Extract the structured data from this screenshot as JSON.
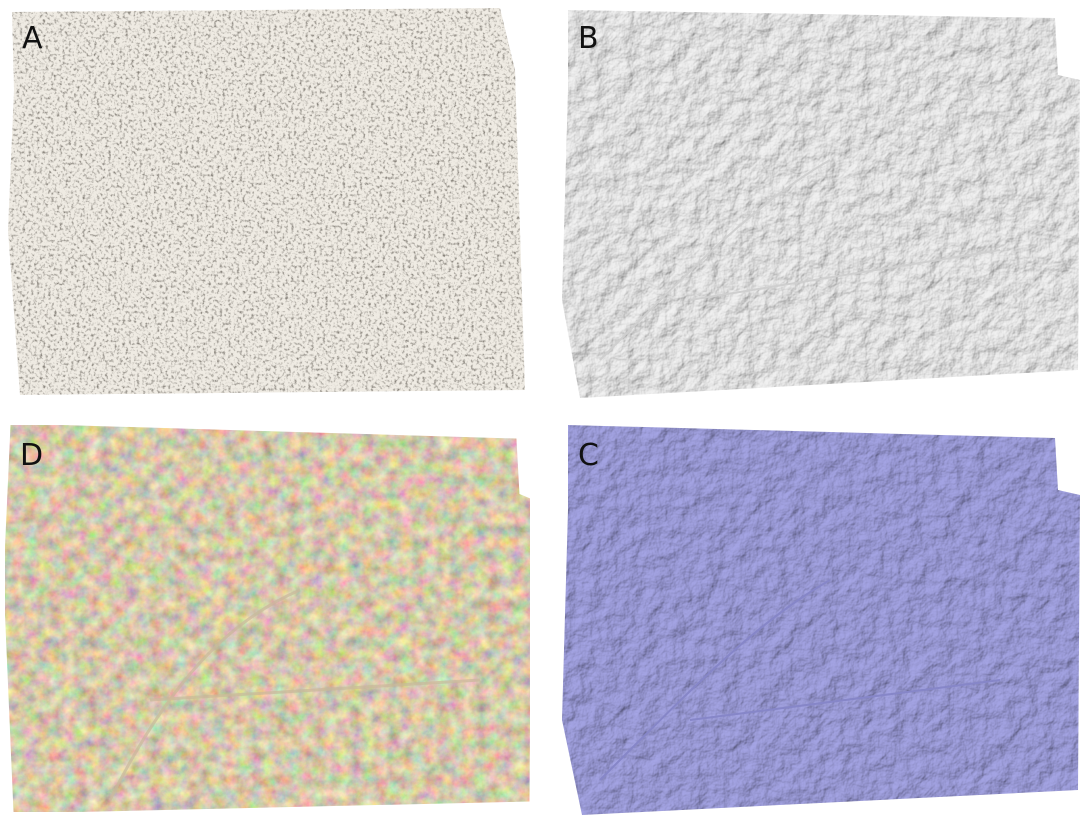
{
  "panels": [
    {
      "label": "A"
    },
    {
      "label": "B"
    },
    {
      "label": "D"
    },
    {
      "label": "C"
    }
  ]
}
